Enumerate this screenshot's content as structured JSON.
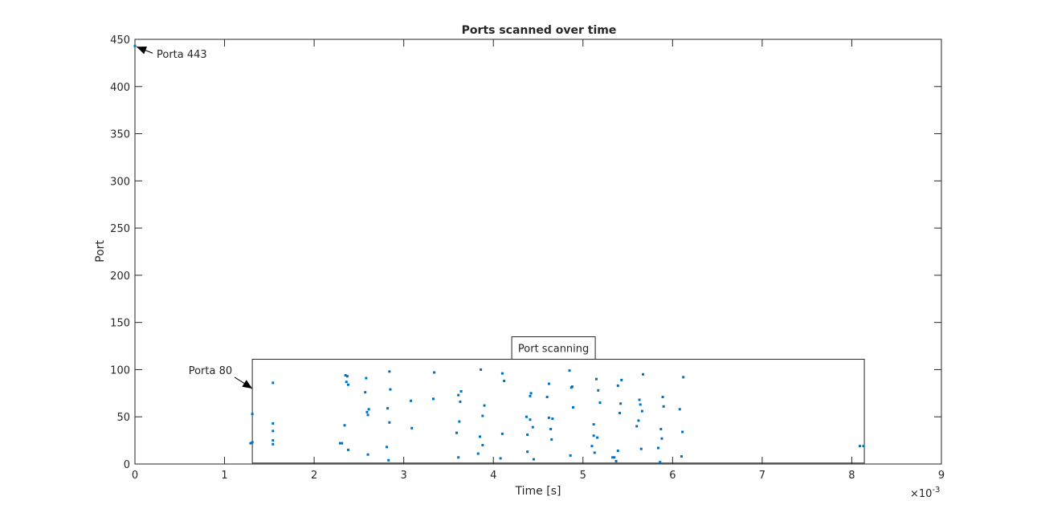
{
  "chart_data": {
    "type": "scatter",
    "title": "Ports scanned over time",
    "xlabel": "Time [s]",
    "ylabel": "Port",
    "xlim": [
      0,
      9
    ],
    "ylim": [
      0,
      450
    ],
    "x_scale_exponent_label": "×10",
    "x_scale_exponent": "-3",
    "xticks": [
      "0",
      "1",
      "2",
      "3",
      "4",
      "5",
      "6",
      "7",
      "8",
      "9"
    ],
    "yticks": [
      "0",
      "50",
      "100",
      "150",
      "200",
      "250",
      "300",
      "350",
      "400",
      "450"
    ],
    "grid": false,
    "marker_color": "#0072BD",
    "series": [
      {
        "points": [
          [
            0,
            443
          ],
          [
            1.29,
            22
          ],
          [
            1.31,
            23
          ],
          [
            1.31,
            53
          ],
          [
            1.54,
            86
          ],
          [
            1.54,
            43
          ],
          [
            1.54,
            35
          ],
          [
            1.54,
            25
          ],
          [
            1.54,
            21
          ],
          [
            2.29,
            22
          ],
          [
            2.31,
            22
          ],
          [
            2.34,
            41
          ],
          [
            2.35,
            94
          ],
          [
            2.37,
            93
          ],
          [
            2.36,
            87
          ],
          [
            2.38,
            84
          ],
          [
            2.38,
            15
          ],
          [
            2.57,
            76
          ],
          [
            2.58,
            91
          ],
          [
            2.59,
            55
          ],
          [
            2.6,
            52
          ],
          [
            2.61,
            58
          ],
          [
            2.6,
            10
          ],
          [
            2.81,
            18
          ],
          [
            2.82,
            59
          ],
          [
            2.83,
            4
          ],
          [
            2.84,
            98
          ],
          [
            2.85,
            79
          ],
          [
            2.84,
            44
          ],
          [
            3.08,
            67
          ],
          [
            3.09,
            38
          ],
          [
            3.33,
            69
          ],
          [
            3.34,
            97
          ],
          [
            3.59,
            33
          ],
          [
            3.61,
            73
          ],
          [
            3.61,
            7
          ],
          [
            3.62,
            45
          ],
          [
            3.63,
            66
          ],
          [
            3.64,
            77
          ],
          [
            3.83,
            11
          ],
          [
            3.85,
            29
          ],
          [
            3.86,
            100
          ],
          [
            3.88,
            51
          ],
          [
            3.88,
            20
          ],
          [
            3.9,
            62
          ],
          [
            4.08,
            6
          ],
          [
            4.1,
            96
          ],
          [
            4.1,
            32
          ],
          [
            4.12,
            88
          ],
          [
            4.37,
            50
          ],
          [
            4.38,
            13
          ],
          [
            4.38,
            31
          ],
          [
            4.41,
            47
          ],
          [
            4.41,
            72
          ],
          [
            4.42,
            75
          ],
          [
            4.44,
            39
          ],
          [
            4.45,
            5
          ],
          [
            4.6,
            71
          ],
          [
            4.62,
            85
          ],
          [
            4.62,
            49
          ],
          [
            4.64,
            37
          ],
          [
            4.65,
            26
          ],
          [
            4.66,
            48
          ],
          [
            4.85,
            99
          ],
          [
            4.86,
            9
          ],
          [
            4.87,
            81
          ],
          [
            4.88,
            82
          ],
          [
            4.89,
            60
          ],
          [
            5.1,
            19
          ],
          [
            5.12,
            42
          ],
          [
            5.12,
            30
          ],
          [
            5.13,
            12
          ],
          [
            5.15,
            90
          ],
          [
            5.16,
            28
          ],
          [
            5.17,
            78
          ],
          [
            5.19,
            65
          ],
          [
            5.33,
            7
          ],
          [
            5.35,
            7
          ],
          [
            5.37,
            3
          ],
          [
            5.39,
            83
          ],
          [
            5.39,
            14
          ],
          [
            5.41,
            54
          ],
          [
            5.42,
            64
          ],
          [
            5.43,
            89
          ],
          [
            5.6,
            40
          ],
          [
            5.62,
            46
          ],
          [
            5.63,
            68
          ],
          [
            5.64,
            63
          ],
          [
            5.65,
            16
          ],
          [
            5.66,
            56
          ],
          [
            5.67,
            95
          ],
          [
            5.84,
            17
          ],
          [
            5.86,
            2
          ],
          [
            5.87,
            37
          ],
          [
            5.88,
            27
          ],
          [
            5.89,
            71
          ],
          [
            5.9,
            61
          ],
          [
            6.08,
            58
          ],
          [
            6.1,
            8
          ],
          [
            6.11,
            34
          ],
          [
            6.12,
            92
          ],
          [
            8.09,
            19
          ],
          [
            8.13,
            19
          ]
        ]
      }
    ],
    "annotations": [
      {
        "text": "Porta 443",
        "target": [
          0,
          443
        ]
      },
      {
        "text": "Porta 80",
        "target": [
          1.31,
          80
        ]
      },
      {
        "text": "Port scanning",
        "box_x": [
          1.31,
          8.14
        ],
        "box_y": [
          1,
          111
        ]
      }
    ]
  }
}
